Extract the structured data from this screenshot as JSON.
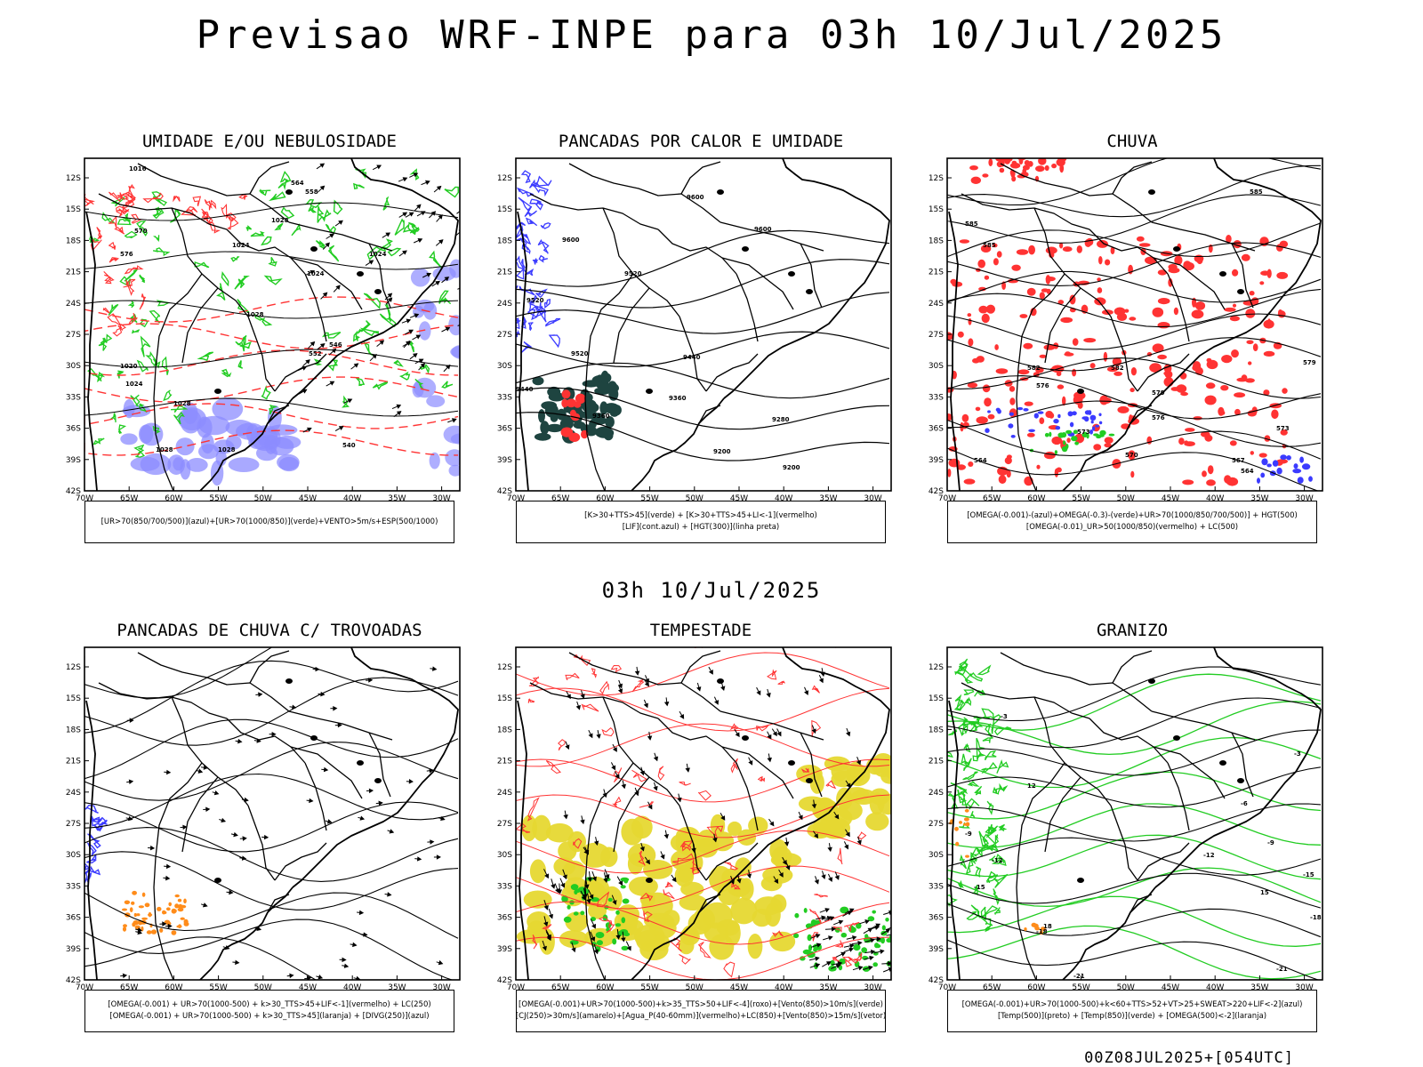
{
  "main_title": "Previsao WRF-INPE  para 03h 10/Jul/2025",
  "mid_title": "03h 10/Jul/2025",
  "footer": "00Z08JUL2025+[054UTC]",
  "axes": {
    "lat_labels": [
      "12S",
      "15S",
      "18S",
      "21S",
      "24S",
      "27S",
      "30S",
      "33S",
      "36S",
      "39S",
      "42S"
    ],
    "lon_labels": [
      "70W",
      "65W",
      "60W",
      "55W",
      "50W",
      "45W",
      "40W",
      "35W",
      "30W"
    ]
  },
  "colors": {
    "coast": "#000000",
    "blue": "#3b3bff",
    "light_blue": "#8c8cff",
    "lavender": "#b8b8f0",
    "green": "#22cc22",
    "red": "#ff3333",
    "dark_teal": "#1e4440",
    "orange": "#ff8c1a",
    "yellow": "#e6d832"
  },
  "panels": [
    {
      "id": "umidade",
      "title": "UMIDADE E/OU NEBULOSIDADE",
      "legend": [
        "[UR>70(850/700/500)](azul)+[UR>70(1000/850)](verde)+VENTO>5m/s+ESP(500/1000)"
      ],
      "contour_labels": [
        "1016",
        "1024",
        "1028",
        "1024",
        "1024",
        "1028",
        "1020",
        "1024",
        "1028",
        "1028",
        "1028",
        "540",
        "546",
        "552",
        "558",
        "564",
        "570",
        "576"
      ]
    },
    {
      "id": "pancadas-calor",
      "title": "PANCADAS POR CALOR E UMIDADE",
      "legend": [
        "[K>30+TTS>45](verde) + [K>30+TTS>45+LI<-1](vermelho)",
        "[LIF](cont.azul) + [HGT(300)](linha preta)"
      ],
      "contour_labels": [
        "9600",
        "9600",
        "9600",
        "9520",
        "9520",
        "9520",
        "9440",
        "9440",
        "9360",
        "9360",
        "9280",
        "9200",
        "9200"
      ]
    },
    {
      "id": "chuva",
      "title": "CHUVA",
      "legend": [
        "[OMEGA(-0.001)-(azul)+OMEGA(-0.3)-(verde)+UR>70(1000/850/700/500)] + HGT(500)",
        "[OMEGA(-0.01)_UR>50(1000/850)(vermelho) + LC(500)"
      ],
      "contour_labels": [
        "585",
        "585",
        "585",
        "582",
        "582",
        "579",
        "579",
        "576",
        "576",
        "573",
        "573",
        "570",
        "567",
        "564",
        "564"
      ]
    },
    {
      "id": "trovoadas",
      "title": "PANCADAS DE CHUVA C/ TROVOADAS",
      "legend": [
        "[OMEGA(-0.001) + UR>70(1000-500) + k>30_TTS>45+LIF<-1](vermelho) + LC(250)",
        "[OMEGA(-0.001) + UR>70(1000-500) + k>30_TTS>45](laranja) + [DIVG(250)](azul)"
      ],
      "contour_labels": []
    },
    {
      "id": "tempestade",
      "title": "TEMPESTADE",
      "legend": [
        "[OMEGA(-0.001)+UR>70(1000-500)+k>35_TTS>50+LIF<-4](roxo)+[Vento(850)>10m/s](verde)",
        "[CJ(250)>30m/s](amarelo)+[Agua_P(40-60mm)](vermelho)+LC(850)+[Vento(850)>15m/s](vetor)"
      ],
      "contour_labels": []
    },
    {
      "id": "granizo",
      "title": "GRANIZO",
      "legend": [
        "[OMEGA(-0.001)+UR>70(1000-500)+k<60+TTS>52+VT>25+SWEAT>220+LIF<-2](azul)",
        "[Temp(500)](preto) + [Temp(850)](verde) + [OMEGA(500)<-2](laranja)"
      ],
      "contour_labels": [
        "-3",
        "-3",
        "-6",
        "-9",
        "-9",
        "-12",
        "-12",
        "-15",
        "-15",
        "-18",
        "-18",
        "-21",
        "-21",
        "18",
        "15",
        "12"
      ]
    }
  ]
}
